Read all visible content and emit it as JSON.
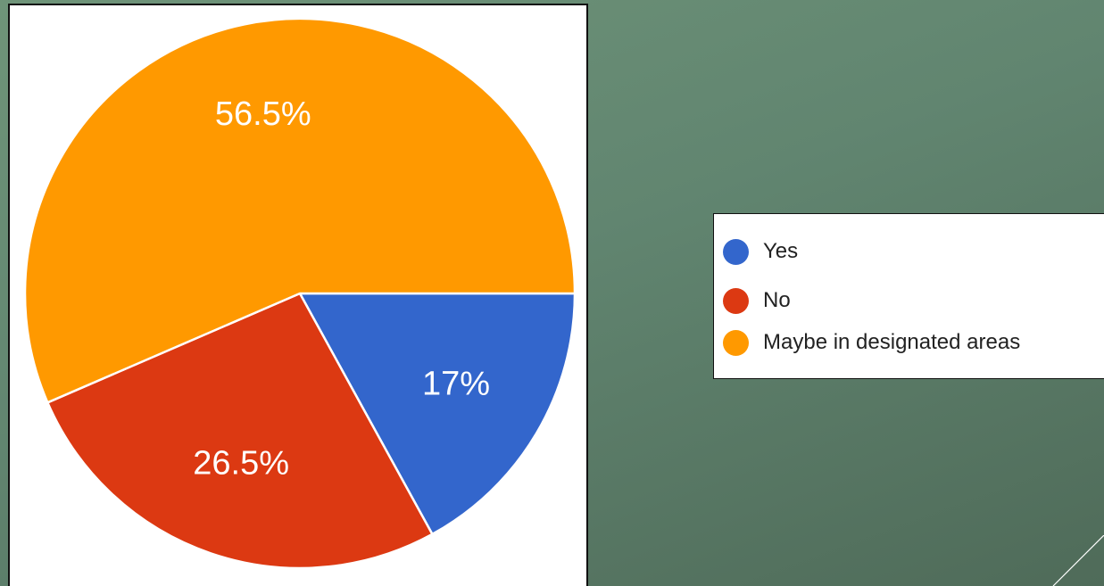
{
  "chart_data": {
    "type": "pie",
    "title": "",
    "slices": [
      {
        "label": "Yes",
        "value": 17,
        "display": "17%",
        "color": "#3366cc"
      },
      {
        "label": "No",
        "value": 26.5,
        "display": "26.5%",
        "color": "#dc3912"
      },
      {
        "label": "Maybe in designated areas",
        "value": 56.5,
        "display": "56.5%",
        "color": "#ff9900"
      }
    ],
    "legend_position": "right",
    "start_angle_deg": 0,
    "direction": "clockwise"
  },
  "colors": {
    "slide_background": "#618570",
    "panel_background": "#ffffff",
    "slice_border": "#ffffff",
    "label_text": "#ffffff"
  }
}
